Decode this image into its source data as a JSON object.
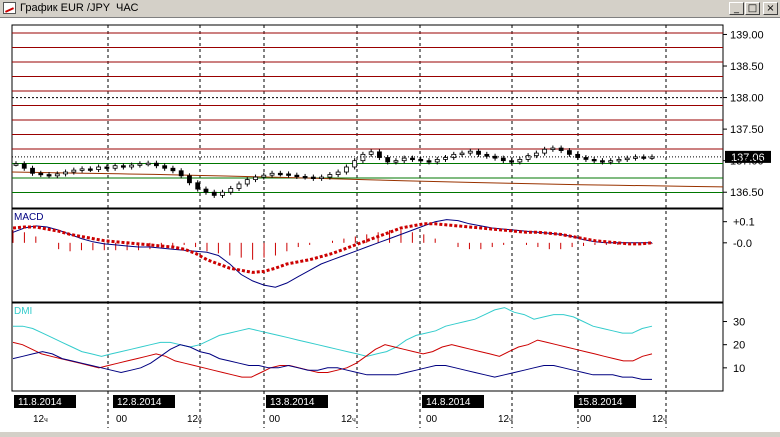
{
  "window": {
    "title": "График EUR /JPY  ЧАС",
    "buttons": {
      "minimize": "_",
      "maximize": "□",
      "close": "×"
    }
  },
  "colors": {
    "price_up": "#cc0000",
    "price_down": "#007700",
    "macd": "#000080",
    "signal": "#cc0000",
    "dmi": "#33cccc",
    "adx": "#000080",
    "pdi": "#cc0000",
    "grid": "#000000"
  },
  "chart_data": [
    {
      "type": "candlestick",
      "symbol": "EUR/JPY",
      "y_axis_ticks": [
        "139.00",
        "138.50",
        "138.00",
        "137.50",
        "137.00",
        "136.50"
      ],
      "current_price_label": "137.06",
      "ylim": [
        136.25,
        139.15
      ],
      "close": [
        136.95,
        136.88,
        136.8,
        136.78,
        136.76,
        136.79,
        136.82,
        136.85,
        136.87,
        136.86,
        136.9,
        136.88,
        136.92,
        136.9,
        136.93,
        136.95,
        136.96,
        136.92,
        136.88,
        136.84,
        136.76,
        136.65,
        136.55,
        136.5,
        136.45,
        136.5,
        136.56,
        136.63,
        136.7,
        136.74,
        136.77,
        136.8,
        136.79,
        136.77,
        136.75,
        136.74,
        136.72,
        136.74,
        136.78,
        136.82,
        136.9,
        137.0,
        137.1,
        137.14,
        137.05,
        136.98,
        137.0,
        137.04,
        137.02,
        137.0,
        136.98,
        137.02,
        137.05,
        137.1,
        137.12,
        137.15,
        137.1,
        137.07,
        137.04,
        137.0,
        136.98,
        137.02,
        137.08,
        137.12,
        137.18,
        137.2,
        137.16,
        137.1,
        137.05,
        137.02,
        137.0,
        136.98,
        137.0,
        137.02,
        137.04,
        137.06,
        137.05,
        137.06
      ]
    },
    {
      "type": "line",
      "indicator": "MACD",
      "label": "MACD",
      "y_axis_ticks": [
        "+0.1",
        "-0.0"
      ],
      "ylim": [
        -0.28,
        0.16
      ],
      "macd": [
        0.05,
        0.07,
        0.08,
        0.075,
        0.06,
        0.04,
        0.02,
        0.005,
        -0.005,
        -0.01,
        -0.015,
        -0.02,
        -0.02,
        -0.025,
        -0.03,
        -0.035,
        -0.04,
        -0.045,
        -0.06,
        -0.1,
        -0.15,
        -0.18,
        -0.2,
        -0.21,
        -0.19,
        -0.16,
        -0.13,
        -0.1,
        -0.08,
        -0.06,
        -0.04,
        -0.02,
        0.0,
        0.02,
        0.04,
        0.06,
        0.08,
        0.1,
        0.11,
        0.105,
        0.09,
        0.08,
        0.07,
        0.065,
        0.06,
        0.055,
        0.05,
        0.045,
        0.04,
        0.03,
        0.015,
        0.005,
        0.0,
        0.0,
        0.0,
        0.0,
        0.0
      ],
      "signal": [
        0.07,
        0.075,
        0.075,
        0.065,
        0.055,
        0.04,
        0.03,
        0.02,
        0.01,
        0.005,
        0.0,
        -0.005,
        -0.01,
        -0.015,
        -0.02,
        -0.03,
        -0.05,
        -0.08,
        -0.1,
        -0.12,
        -0.13,
        -0.14,
        -0.135,
        -0.12,
        -0.1,
        -0.09,
        -0.08,
        -0.065,
        -0.05,
        -0.03,
        -0.01,
        0.01,
        0.03,
        0.05,
        0.07,
        0.08,
        0.09,
        0.09,
        0.085,
        0.08,
        0.075,
        0.07,
        0.065,
        0.06,
        0.055,
        0.05,
        0.05,
        0.045,
        0.04,
        0.03,
        0.02,
        0.01,
        0.005,
        0.0,
        -0.005,
        -0.005,
        0.0
      ],
      "histogram": [
        0.06,
        0.05,
        0.03,
        0.0,
        -0.03,
        -0.04,
        -0.035,
        -0.035,
        -0.035,
        -0.035,
        -0.035,
        -0.035,
        -0.03,
        -0.025,
        -0.02,
        -0.01,
        -0.02,
        -0.04,
        -0.05,
        -0.06,
        -0.07,
        -0.08,
        -0.07,
        -0.06,
        -0.04,
        -0.02,
        -0.01,
        0.0,
        0.01,
        0.02,
        0.03,
        0.04,
        0.05,
        0.06,
        0.06,
        0.05,
        0.04,
        0.02,
        0.0,
        -0.02,
        -0.03,
        -0.03,
        -0.02,
        -0.01,
        0.0,
        -0.01,
        -0.02,
        -0.03,
        -0.03,
        -0.02,
        -0.015,
        -0.01,
        -0.01,
        -0.01,
        -0.01,
        -0.01,
        -0.005
      ]
    },
    {
      "type": "line",
      "indicator": "DMI",
      "label": "DMI",
      "y_axis_ticks": [
        "30",
        "20",
        "10"
      ],
      "ylim": [
        0,
        38
      ],
      "dmi": [
        28,
        28,
        27,
        25,
        23,
        21,
        19,
        17,
        16,
        15,
        16,
        17,
        18,
        19,
        20,
        21,
        21,
        20,
        19,
        20,
        22,
        24,
        25,
        26,
        27,
        26,
        25,
        24,
        23,
        22,
        21,
        20,
        19,
        18,
        17,
        16,
        15,
        16,
        17,
        19,
        22,
        24,
        25,
        26,
        28,
        29,
        30,
        31,
        33,
        35,
        36,
        34,
        33,
        31,
        32,
        33,
        33,
        32,
        30,
        28,
        27,
        26,
        25,
        25,
        27,
        28
      ],
      "pdi": [
        21,
        20,
        18,
        16,
        15,
        14,
        13,
        12,
        11,
        10,
        11,
        12,
        13,
        14,
        15,
        16,
        15,
        13,
        12,
        11,
        10,
        9,
        8,
        7,
        6,
        6,
        8,
        10,
        11,
        11,
        10,
        9,
        8,
        8,
        9,
        10,
        12,
        15,
        18,
        20,
        19,
        18,
        17,
        16,
        17,
        19,
        20,
        19,
        18,
        17,
        16,
        15,
        17,
        19,
        20,
        22,
        21,
        20,
        19,
        18,
        17,
        16,
        15,
        14,
        13,
        13,
        15,
        16
      ],
      "adx": [
        14,
        15,
        16,
        17,
        16,
        14,
        13,
        12,
        11,
        10,
        9,
        8,
        9,
        10,
        12,
        15,
        18,
        20,
        19,
        17,
        16,
        14,
        13,
        12,
        11,
        11,
        10,
        10,
        11,
        10,
        9,
        9,
        10,
        10,
        9,
        8,
        7,
        7,
        7,
        7,
        8,
        9,
        10,
        11,
        11,
        10,
        9,
        8,
        7,
        6,
        7,
        8,
        9,
        10,
        11,
        11,
        10,
        9,
        8,
        7,
        7,
        7,
        6,
        6,
        5,
        5
      ]
    }
  ],
  "x_axis": {
    "date_labels": [
      "11.8.2014",
      "12.8.2014",
      "13.8.2014",
      "14.8.2014",
      "15.8.2014"
    ],
    "hour_labels": [
      {
        "h": "12",
        "s": "ч"
      },
      {
        "h": "00",
        "s": ""
      },
      {
        "h": "12",
        "s": "ч"
      },
      {
        "h": "00",
        "s": ""
      },
      {
        "h": "12",
        "s": "ч"
      },
      {
        "h": "00",
        "s": ""
      },
      {
        "h": "12",
        "s": "ч"
      },
      {
        "h": "00",
        "s": ""
      },
      {
        "h": "12",
        "s": "ч"
      }
    ]
  }
}
